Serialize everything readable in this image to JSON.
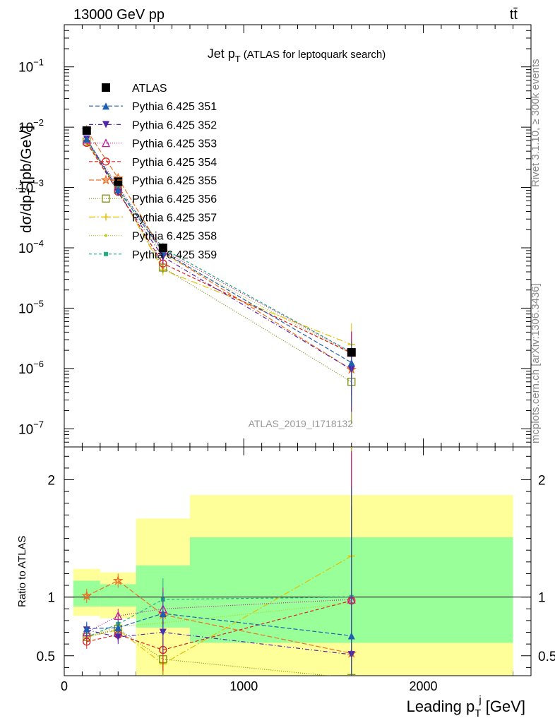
{
  "header": {
    "energy": "13000 GeV pp",
    "process": "tt̄"
  },
  "side": {
    "rivet": "Rivet 3.1.10, ≥ 300k events",
    "mcplots": "mcplots.cern.ch [arXiv:1306.3436]"
  },
  "chart_data": [
    {
      "type": "line",
      "title": "Jet p_T (ATLAS for leptoquark search)",
      "title_main": "Jet p",
      "title_sub": "T",
      "title_rest": "(ATLAS for leptoquark search)",
      "ylabel": "dσ/dp_T^j [pb/GeV]",
      "ylabel_main": "dσ/dp",
      "ylabel_sub": "T",
      "ylabel_sup": "j",
      "ylabel_rest": "[pb/GeV]",
      "yscale": "log",
      "ylim": [
        5e-08,
        0.5
      ],
      "xlim": [
        0,
        2600
      ],
      "y_ticks": [
        {
          "v": 1e-07,
          "base": "10",
          "exp": "−7"
        },
        {
          "v": 1e-06,
          "base": "10",
          "exp": "−6"
        },
        {
          "v": 1e-05,
          "base": "10",
          "exp": "−5"
        },
        {
          "v": 0.0001,
          "base": "10",
          "exp": "−4"
        },
        {
          "v": 0.001,
          "base": "10",
          "exp": "−3"
        },
        {
          "v": 0.01,
          "base": "10",
          "exp": "−2"
        },
        {
          "v": 0.1,
          "base": "10",
          "exp": "−1"
        }
      ],
      "watermark": "ATLAS_2019_I1718132",
      "legend_position": "top-left",
      "x": [
        125,
        300,
        550,
        1600
      ],
      "series": [
        {
          "name": "ATLAS",
          "color": "#000000",
          "marker": "square-filled",
          "dash": "none",
          "values": [
            0.0088,
            0.00125,
            0.0001,
            1.85e-06
          ]
        },
        {
          "name": "Pythia 6.425 351",
          "color": "#1f5fb0",
          "marker": "triangle-up-filled",
          "dash": "6,3",
          "values": [
            0.0064,
            0.00092,
            8.6e-05,
            1.25e-06
          ]
        },
        {
          "name": "Pythia 6.425 352",
          "color": "#5522aa",
          "marker": "triangle-down-filled",
          "dash": "6,3,1,3",
          "values": [
            0.0064,
            0.00082,
            7.1e-05,
            9.6e-07
          ]
        },
        {
          "name": "Pythia 6.425 353",
          "color": "#c0199c",
          "marker": "triangle-up-open",
          "dash": "1,2",
          "values": [
            0.0062,
            0.00105,
            9e-05,
            1.82e-06
          ]
        },
        {
          "name": "Pythia 6.425 354",
          "color": "#e02020",
          "marker": "circle-open",
          "dash": "5,3",
          "values": [
            0.0055,
            0.00085,
            5.5e-05,
            1.8e-06
          ]
        },
        {
          "name": "Pythia 6.425 355",
          "color": "#f07020",
          "marker": "star",
          "dash": "7,3",
          "values": [
            0.0089,
            0.00143,
            8.5e-05,
            9.6e-07
          ]
        },
        {
          "name": "Pythia 6.425 356",
          "color": "#7f8f10",
          "marker": "square-open",
          "dash": "1,2",
          "values": [
            0.0058,
            0.00092,
            4.7e-05,
            6e-07
          ]
        },
        {
          "name": "Pythia 6.425 357",
          "color": "#e0c000",
          "marker": "plus",
          "dash": "9,3,2,3",
          "values": [
            0.0058,
            0.0009,
            4.3e-05,
            2.5e-06
          ]
        },
        {
          "name": "Pythia 6.425 358",
          "color": "#b8d020",
          "marker": "dot",
          "dash": "1,2",
          "values": [
            0.0058,
            0.00094,
            7.8e-05,
            1.75e-06
          ]
        },
        {
          "name": "Pythia 6.425 359",
          "color": "#20b080",
          "marker": "square-filled-small",
          "dash": "4,3",
          "values": [
            0.0058,
            0.00096,
            9.8e-05,
            1.85e-06
          ]
        }
      ]
    },
    {
      "type": "line",
      "ylabel": "Ratio to ATLAS",
      "xlabel": "Leading p_T^j [GeV]",
      "xlabel_main": "Leading p",
      "xlabel_sub": "T",
      "xlabel_sup": "j",
      "xlabel_rest": "[GeV]",
      "ylim": [
        0.33,
        2.28
      ],
      "xlim": [
        0,
        2600
      ],
      "x_ticks": [
        0,
        1000,
        2000
      ],
      "x_tick_labels": [
        "0",
        "1000",
        "2000"
      ],
      "y_ticks": [
        0.5,
        1,
        2
      ],
      "y_tick_labels": [
        "0.5",
        "1",
        "2"
      ],
      "bands": [
        {
          "x0": 50,
          "x1": 200,
          "yellow": [
            0.84,
            1.24
          ],
          "green": [
            0.92,
            1.14
          ]
        },
        {
          "x0": 200,
          "x1": 400,
          "yellow": [
            0.82,
            1.21
          ],
          "green": [
            0.92,
            1.11
          ]
        },
        {
          "x0": 400,
          "x1": 700,
          "yellow": [
            0.33,
            1.67
          ],
          "green": [
            0.74,
            1.27
          ]
        },
        {
          "x0": 700,
          "x1": 2500,
          "yellow": [
            0.33,
            1.87
          ],
          "green": [
            0.61,
            1.51
          ]
        }
      ],
      "x": [
        125,
        300,
        550,
        1600
      ],
      "series": [
        {
          "name": "ATLAS",
          "values": [
            1,
            1,
            1,
            1
          ]
        },
        {
          "name": "Pythia 6.425 351",
          "values": [
            0.73,
            0.74,
            0.86,
            0.67
          ]
        },
        {
          "name": "Pythia 6.425 352",
          "values": [
            0.72,
            0.66,
            0.7,
            0.51
          ]
        },
        {
          "name": "Pythia 6.425 353",
          "values": [
            0.7,
            0.84,
            0.9,
            0.98
          ]
        },
        {
          "name": "Pythia 6.425 354",
          "values": [
            0.62,
            0.68,
            0.55,
            0.97
          ]
        },
        {
          "name": "Pythia 6.425 355",
          "values": [
            1.01,
            1.14,
            0.85,
            0.52
          ]
        },
        {
          "name": "Pythia 6.425 356",
          "values": [
            0.66,
            0.73,
            0.47,
            0.31
          ]
        },
        {
          "name": "Pythia 6.425 357",
          "values": [
            0.66,
            0.72,
            0.43,
            1.35
          ]
        },
        {
          "name": "Pythia 6.425 358",
          "values": [
            0.66,
            0.75,
            0.78,
            0.95
          ]
        },
        {
          "name": "Pythia 6.425 359",
          "values": [
            0.66,
            0.77,
            0.98,
            1.0
          ]
        }
      ]
    }
  ]
}
